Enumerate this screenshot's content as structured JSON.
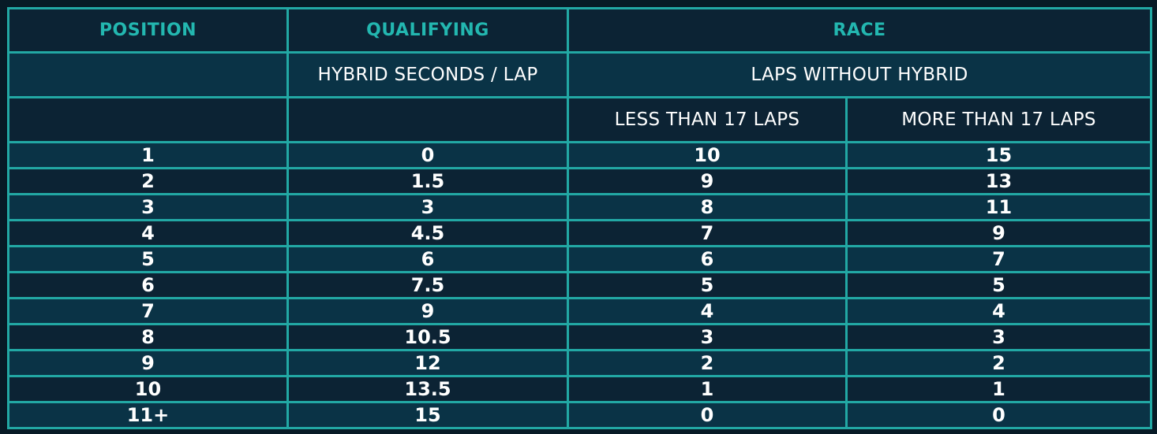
{
  "headers": {
    "position": "POSITION",
    "qualifying": "QUALIFYING",
    "race": "RACE",
    "hybrid_seconds_per_lap": "HYBRID SECONDS / LAP",
    "laps_without_hybrid": "LAPS WITHOUT HYBRID",
    "less_than_17": "LESS THAN 17 LAPS",
    "more_than_17": "MORE THAN 17 LAPS"
  },
  "rows": [
    {
      "position": "1",
      "qualifying": "0",
      "less": "10",
      "more": "15"
    },
    {
      "position": "2",
      "qualifying": "1.5",
      "less": "9",
      "more": "13"
    },
    {
      "position": "3",
      "qualifying": "3",
      "less": "8",
      "more": "11"
    },
    {
      "position": "4",
      "qualifying": "4.5",
      "less": "7",
      "more": "9"
    },
    {
      "position": "5",
      "qualifying": "6",
      "less": "6",
      "more": "7"
    },
    {
      "position": "6",
      "qualifying": "7.5",
      "less": "5",
      "more": "5"
    },
    {
      "position": "7",
      "qualifying": "9",
      "less": "4",
      "more": "4"
    },
    {
      "position": "8",
      "qualifying": "10.5",
      "less": "3",
      "more": "3"
    },
    {
      "position": "9",
      "qualifying": "12",
      "less": "2",
      "more": "2"
    },
    {
      "position": "10",
      "qualifying": "13.5",
      "less": "1",
      "more": "1"
    },
    {
      "position": "11+",
      "qualifying": "15",
      "less": "0",
      "more": "0"
    }
  ]
}
